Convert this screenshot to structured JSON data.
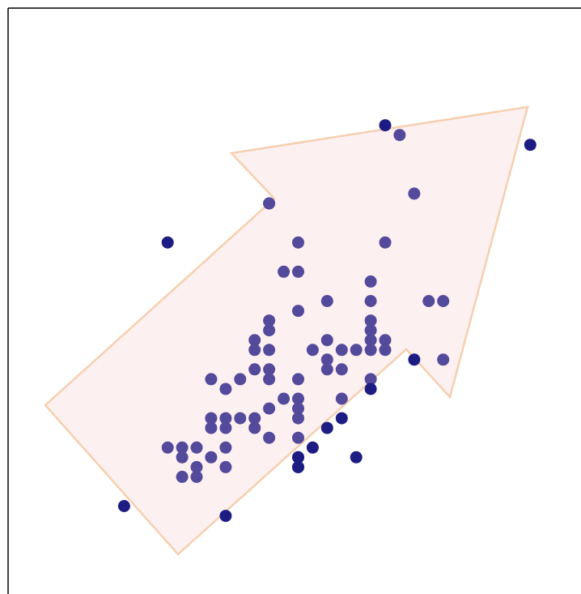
{
  "chart_data": {
    "type": "scatter",
    "title": "",
    "xlabel": "",
    "ylabel": "",
    "xlim": [
      0,
      39.5
    ],
    "ylim": [
      0,
      60
    ],
    "grid": false,
    "axes": {
      "left": true,
      "top": true,
      "right": false,
      "bottom": false
    },
    "points": [
      [
        8,
        9
      ],
      [
        11,
        36
      ],
      [
        15,
        8
      ],
      [
        18,
        40
      ],
      [
        26,
        48
      ],
      [
        27,
        47
      ],
      [
        36,
        46
      ],
      [
        12,
        14
      ],
      [
        12,
        12
      ],
      [
        11,
        15
      ],
      [
        12,
        15
      ],
      [
        13,
        15
      ],
      [
        13,
        13
      ],
      [
        13,
        12
      ],
      [
        14,
        14
      ],
      [
        14,
        18
      ],
      [
        14,
        17
      ],
      [
        14,
        22
      ],
      [
        15,
        21
      ],
      [
        15,
        18
      ],
      [
        15,
        17
      ],
      [
        15,
        15
      ],
      [
        15,
        13
      ],
      [
        16,
        22
      ],
      [
        16,
        18
      ],
      [
        17,
        17
      ],
      [
        17,
        18
      ],
      [
        17,
        23
      ],
      [
        17,
        25
      ],
      [
        17,
        26
      ],
      [
        18,
        25
      ],
      [
        18,
        27
      ],
      [
        18,
        22
      ],
      [
        18,
        19
      ],
      [
        18,
        16
      ],
      [
        18,
        23
      ],
      [
        18,
        28
      ],
      [
        19,
        20
      ],
      [
        20,
        13
      ],
      [
        20,
        14
      ],
      [
        20,
        16
      ],
      [
        20,
        18
      ],
      [
        20,
        19
      ],
      [
        20,
        20
      ],
      [
        20,
        22
      ],
      [
        20,
        29
      ],
      [
        20,
        33
      ],
      [
        20,
        36
      ],
      [
        19,
        33
      ],
      [
        21,
        25
      ],
      [
        22,
        23
      ],
      [
        22,
        24
      ],
      [
        22,
        26
      ],
      [
        22,
        30
      ],
      [
        23,
        20
      ],
      [
        23,
        23
      ],
      [
        23,
        25
      ],
      [
        24,
        25
      ],
      [
        25,
        25
      ],
      [
        25,
        26
      ],
      [
        25,
        27
      ],
      [
        25,
        28
      ],
      [
        25,
        30
      ],
      [
        25,
        32
      ],
      [
        26,
        25
      ],
      [
        26,
        26
      ],
      [
        26,
        36
      ],
      [
        28,
        41
      ],
      [
        29,
        30
      ],
      [
        30,
        30
      ],
      [
        30,
        24
      ],
      [
        25,
        22
      ],
      [
        25,
        21
      ],
      [
        23,
        18
      ],
      [
        22,
        17
      ],
      [
        21,
        15
      ],
      [
        20,
        13
      ],
      [
        20,
        14
      ],
      [
        24,
        14
      ],
      [
        28,
        24
      ],
      [
        18,
        40
      ]
    ]
  },
  "colors": {
    "point_inside": "#544a9b",
    "point_outside": "#1d1c82",
    "arrow_fill": "#fdf0f1",
    "arrow_stroke": "#f5cfb0",
    "axis": "#000000"
  }
}
